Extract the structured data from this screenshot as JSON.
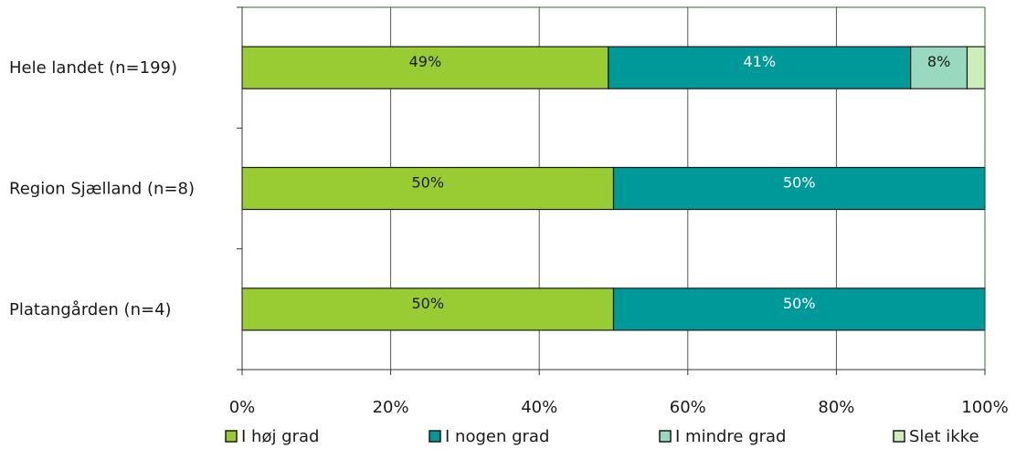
{
  "chart_data": {
    "type": "bar",
    "orientation": "horizontal",
    "stacked": "percent",
    "categories": [
      "Hele landet (n=199)",
      "Region Sjælland (n=8)",
      "Platangården (n=4)"
    ],
    "series": [
      {
        "name": "I høj grad",
        "values": [
          49.3,
          50,
          50
        ],
        "labels": [
          "49%",
          "50%",
          "50%"
        ],
        "color": "#99cc33",
        "label_color": "#1a1a1a"
      },
      {
        "name": "I nogen grad",
        "values": [
          40.7,
          50,
          50
        ],
        "labels": [
          "41%",
          "50%",
          "50%"
        ],
        "color": "#009999",
        "label_color": "#ffffff"
      },
      {
        "name": "I mindre grad",
        "values": [
          7.6,
          0,
          0
        ],
        "labels": [
          "8%",
          "",
          ""
        ],
        "color": "#99d9c0",
        "label_color": "#1a1a1a"
      },
      {
        "name": "Slet ikke",
        "values": [
          2.4,
          0,
          0
        ],
        "labels": [
          "",
          "",
          ""
        ],
        "color": "#cceebb",
        "label_color": "#1a1a1a"
      }
    ],
    "x_ticks": [
      "0%",
      "20%",
      "40%",
      "60%",
      "80%",
      "100%"
    ],
    "xlim": [
      0,
      100
    ],
    "grid": true,
    "legend_position": "bottom"
  }
}
